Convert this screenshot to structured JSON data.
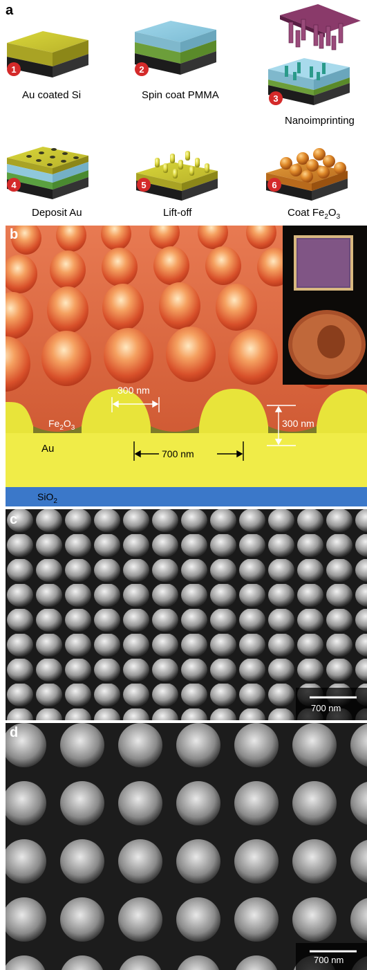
{
  "panels": {
    "a": "a",
    "b": "b",
    "c": "c",
    "d": "d"
  },
  "steps": [
    {
      "num": "1",
      "label": "Au coated Si"
    },
    {
      "num": "2",
      "label": "Spin coat PMMA"
    },
    {
      "num": "3",
      "label": "Nanoimprinting"
    },
    {
      "num": "4",
      "label": "Deposit Au"
    },
    {
      "num": "5",
      "label": "Lift-off"
    },
    {
      "num": "6",
      "label": "Coat Fe",
      "sub": "2",
      "label2": "O",
      "sub2": "3"
    }
  ],
  "schematic": {
    "dome_width": "300 nm",
    "dome_height": "300 nm",
    "period": "700 nm",
    "layer_fe": "Fe",
    "layer_fe_sub2": "2",
    "layer_fe_o": "O",
    "layer_fe_sub3": "3",
    "layer_au": "Au",
    "layer_sio": "SiO",
    "layer_sio_sub": "2"
  },
  "sem_c": {
    "scale_bar": "700 nm"
  },
  "sem_d": {
    "scale_bar": "700 nm"
  },
  "colors": {
    "gold": "#e8e43a",
    "pmma": "#8fcfe6",
    "si": "#2b2b2b",
    "mold": "#7a2a5c",
    "fe2o3": "#d9622a",
    "badge": "#d42a2a",
    "sio2": "#3b78c9"
  }
}
